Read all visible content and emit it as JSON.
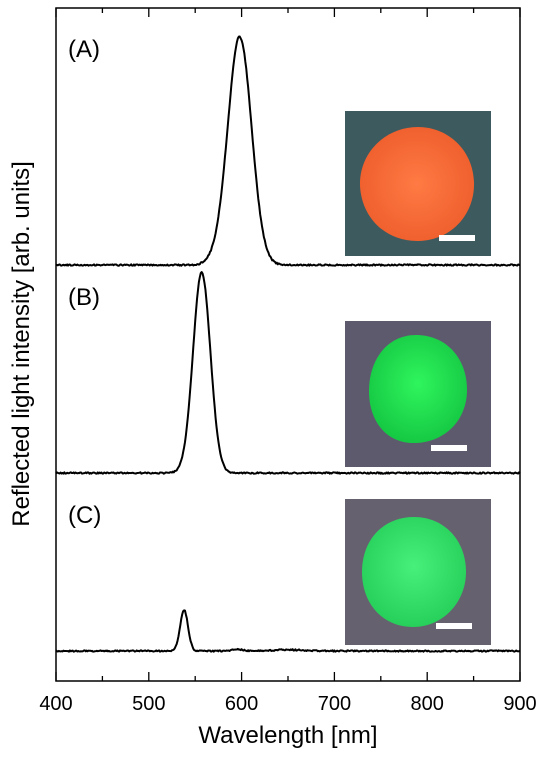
{
  "chart_data": {
    "type": "line",
    "xlabel": "Wavelength [nm]",
    "ylabel": "Reflected light intensity [arb. units]",
    "xlim": [
      400,
      900
    ],
    "xticks": [
      400,
      500,
      600,
      700,
      800,
      900
    ],
    "x_minor_step": 50,
    "yticks": "none",
    "grid": false,
    "legend": "none",
    "line_color": "#000000",
    "panels": [
      {
        "label": "(A)",
        "peak_nm": 598,
        "relative_peak": 1.0,
        "baseline": 0.0,
        "fwhm_nm": 30,
        "inset": {
          "description_color": "#f5703a",
          "background": "#3d5a5e",
          "scale_bar": true
        }
      },
      {
        "label": "(B)",
        "peak_nm": 557,
        "relative_peak": 0.88,
        "baseline": 0.0,
        "fwhm_nm": 22,
        "inset": {
          "description_color": "#22e052",
          "background": "#5e5a6e",
          "scale_bar": true
        }
      },
      {
        "label": "(C)",
        "peak_nm": 538,
        "relative_peak": 0.18,
        "baseline": 0.0,
        "fwhm_nm": 10,
        "inset": {
          "description_color": "#35e46a",
          "background": "#66616f",
          "scale_bar": true
        }
      }
    ]
  }
}
